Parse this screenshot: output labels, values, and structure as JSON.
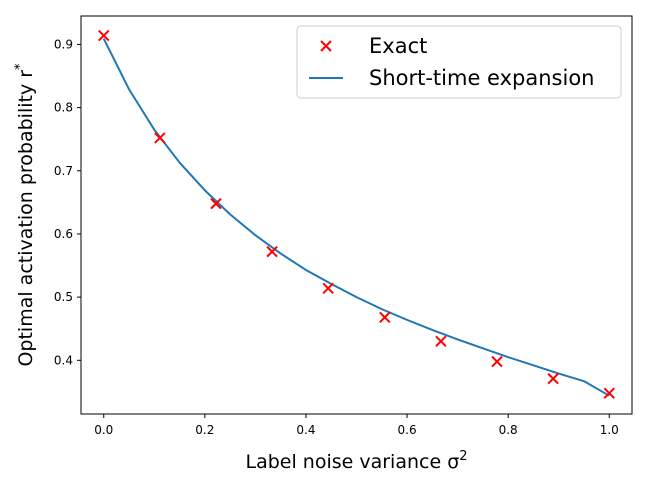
{
  "chart_data": {
    "type": "line",
    "title": "",
    "xlabel": "Label noise variance σ²",
    "ylabel": "Optimal activation probability r*",
    "xlim": [
      -0.045,
      1.045
    ],
    "ylim": [
      0.315,
      0.945
    ],
    "x_ticks": [
      0.0,
      0.2,
      0.4,
      0.6,
      0.8,
      1.0
    ],
    "x_tick_labels": [
      "0.0",
      "0.2",
      "0.4",
      "0.6",
      "0.8",
      "1.0"
    ],
    "y_ticks": [
      0.4,
      0.5,
      0.6,
      0.7,
      0.8,
      0.9
    ],
    "y_tick_labels": [
      "0.4",
      "0.5",
      "0.6",
      "0.7",
      "0.8",
      "0.9"
    ],
    "grid": false,
    "legend_position": "top-right",
    "series": [
      {
        "name": "Exact",
        "kind": "scatter",
        "marker": "x",
        "color": "#ff0000",
        "x": [
          0.0,
          0.111,
          0.222,
          0.333,
          0.444,
          0.556,
          0.667,
          0.778,
          0.889,
          1.0
        ],
        "y": [
          0.914,
          0.752,
          0.648,
          0.572,
          0.514,
          0.468,
          0.43,
          0.398,
          0.371,
          0.348
        ]
      },
      {
        "name": "Short-time expansion",
        "kind": "line",
        "color": "#1f77b4",
        "x": [
          0.0,
          0.05,
          0.1,
          0.15,
          0.2,
          0.25,
          0.3,
          0.35,
          0.4,
          0.45,
          0.5,
          0.55,
          0.6,
          0.65,
          0.7,
          0.75,
          0.8,
          0.85,
          0.9,
          0.95,
          1.0
        ],
        "y": [
          0.909,
          0.829,
          0.765,
          0.713,
          0.669,
          0.631,
          0.598,
          0.569,
          0.543,
          0.521,
          0.5,
          0.481,
          0.464,
          0.448,
          0.433,
          0.419,
          0.405,
          0.392,
          0.379,
          0.367,
          0.344
        ]
      }
    ]
  }
}
